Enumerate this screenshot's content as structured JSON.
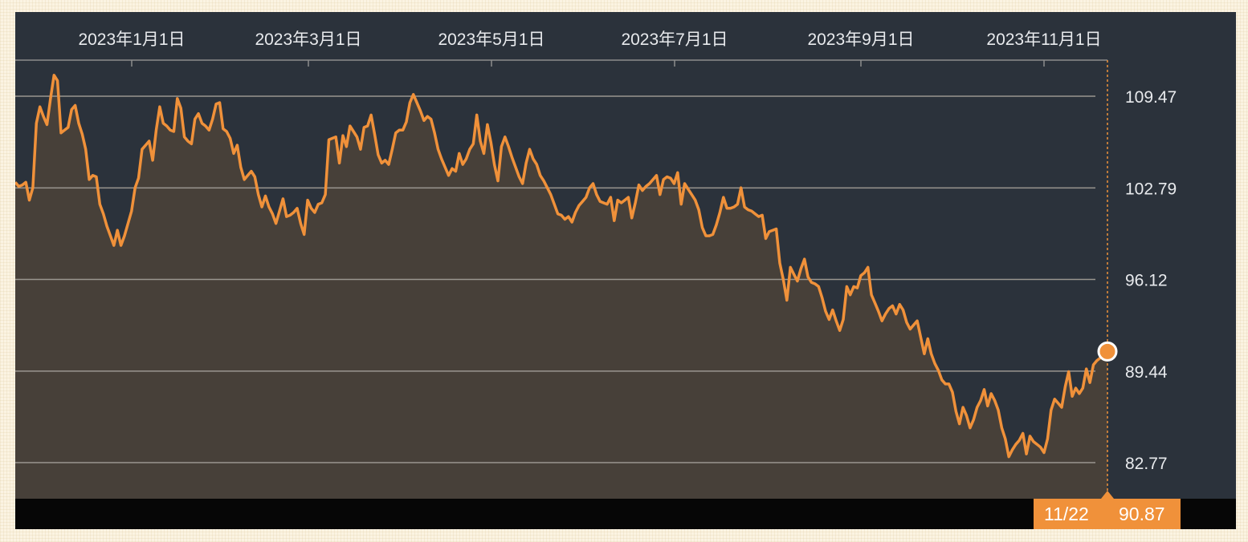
{
  "chart_data": {
    "type": "area",
    "x_tick_labels": [
      "2023年1月1日",
      "2023年3月1日",
      "2023年5月1日",
      "2023年7月1日",
      "2023年9月1日",
      "2023年11月1日"
    ],
    "y_ticks": [
      109.47,
      102.79,
      96.12,
      89.44,
      82.77
    ],
    "y_tick_labels": [
      "109.47",
      "102.79",
      "96.12",
      "89.44",
      "82.77"
    ],
    "ylim": [
      80.3,
      112.1
    ],
    "x_start": "2022-11-22",
    "x_end": "2023-11-22",
    "grid": true,
    "series": [
      {
        "values": [
          103.2,
          102.9,
          103.0,
          103.2,
          101.9,
          102.8,
          107.5,
          108.7,
          108.0,
          107.4,
          109.3,
          111.0,
          110.6,
          106.8,
          107.0,
          107.2,
          108.5,
          108.8,
          107.5,
          106.7,
          105.6,
          103.4,
          103.7,
          103.6,
          101.6,
          100.9,
          100.0,
          99.3,
          98.6,
          99.7,
          98.6,
          99.3,
          100.2,
          101.1,
          102.8,
          103.5,
          105.6,
          105.9,
          106.2,
          104.8,
          107.0,
          108.7,
          107.5,
          107.3,
          107.0,
          106.9,
          109.3,
          108.6,
          106.5,
          106.2,
          106.0,
          107.8,
          108.2,
          107.5,
          107.3,
          107.0,
          107.8,
          108.9,
          109.0,
          107.1,
          106.9,
          106.4,
          105.3,
          105.9,
          104.3,
          103.4,
          103.7,
          104.0,
          103.6,
          102.3,
          101.4,
          102.2,
          101.4,
          100.9,
          100.2,
          101.1,
          102.0,
          100.7,
          100.8,
          101.0,
          101.3,
          100.2,
          99.4,
          101.9,
          101.3,
          101.0,
          101.6,
          101.7,
          102.3,
          106.3,
          106.4,
          106.5,
          104.6,
          106.6,
          105.8,
          107.3,
          106.9,
          106.5,
          105.6,
          107.2,
          107.3,
          108.1,
          106.7,
          105.2,
          104.6,
          104.8,
          104.5,
          105.6,
          106.8,
          107.0,
          107.0,
          107.6,
          109.0,
          109.6,
          109.0,
          108.4,
          107.7,
          108.0,
          107.8,
          106.8,
          105.6,
          104.9,
          104.3,
          103.7,
          104.2,
          104.0,
          105.3,
          104.5,
          104.9,
          105.6,
          106.0,
          108.1,
          106.2,
          105.3,
          107.4,
          106.1,
          104.5,
          103.3,
          105.8,
          106.5,
          105.8,
          105.0,
          104.3,
          103.6,
          103.1,
          104.6,
          105.6,
          104.9,
          104.5,
          103.7,
          103.3,
          102.8,
          102.3,
          101.6,
          100.9,
          100.8,
          100.5,
          100.7,
          100.3,
          101.0,
          101.5,
          101.8,
          102.1,
          102.8,
          103.1,
          102.3,
          101.8,
          101.7,
          101.6,
          102.1,
          100.4,
          101.9,
          101.7,
          101.9,
          102.1,
          100.6,
          101.7,
          103.0,
          102.6,
          102.9,
          103.1,
          103.4,
          103.7,
          102.3,
          103.4,
          103.6,
          103.5,
          103.1,
          103.9,
          101.6,
          103.1,
          102.7,
          102.3,
          101.9,
          101.2,
          99.9,
          99.3,
          99.3,
          99.4,
          100.1,
          101.0,
          102.1,
          101.3,
          101.3,
          101.4,
          101.6,
          102.8,
          101.4,
          101.2,
          101.1,
          100.9,
          100.7,
          100.8,
          99.1,
          99.6,
          99.7,
          99.8,
          97.3,
          96.1,
          94.6,
          97.0,
          96.5,
          96.0,
          96.9,
          97.6,
          96.3,
          95.9,
          95.8,
          95.6,
          94.8,
          93.8,
          93.2,
          93.9,
          93.1,
          92.4,
          93.2,
          95.6,
          95.0,
          95.6,
          95.5,
          96.4,
          96.6,
          97.0,
          95.0,
          94.4,
          93.8,
          93.1,
          93.6,
          94.0,
          94.2,
          93.6,
          94.3,
          93.9,
          93.0,
          92.5,
          92.8,
          93.1,
          91.9,
          90.7,
          91.8,
          90.7,
          90.0,
          89.5,
          88.8,
          88.5,
          88.5,
          87.9,
          86.5,
          85.6,
          86.8,
          86.2,
          85.3,
          85.9,
          86.8,
          87.3,
          88.1,
          86.9,
          87.8,
          87.3,
          86.6,
          85.3,
          84.5,
          83.2,
          83.7,
          84.1,
          84.4,
          84.9,
          83.4,
          84.7,
          84.3,
          84.1,
          83.9,
          83.5,
          84.5,
          86.6,
          87.4,
          87.1,
          86.8,
          88.3,
          89.4,
          87.6,
          88.2,
          87.8,
          88.2,
          89.6,
          88.6,
          89.9,
          90.2,
          90.4,
          90.6,
          90.87
        ]
      }
    ],
    "last_date_label": "11/22",
    "last_value_label": "90.87"
  },
  "colors": {
    "background": "#2b323b",
    "area_fill": "#474039",
    "line": "#f0913a",
    "gridline": "#9a9690",
    "bottom_bar": "#060606",
    "badge": "#f0913a"
  }
}
